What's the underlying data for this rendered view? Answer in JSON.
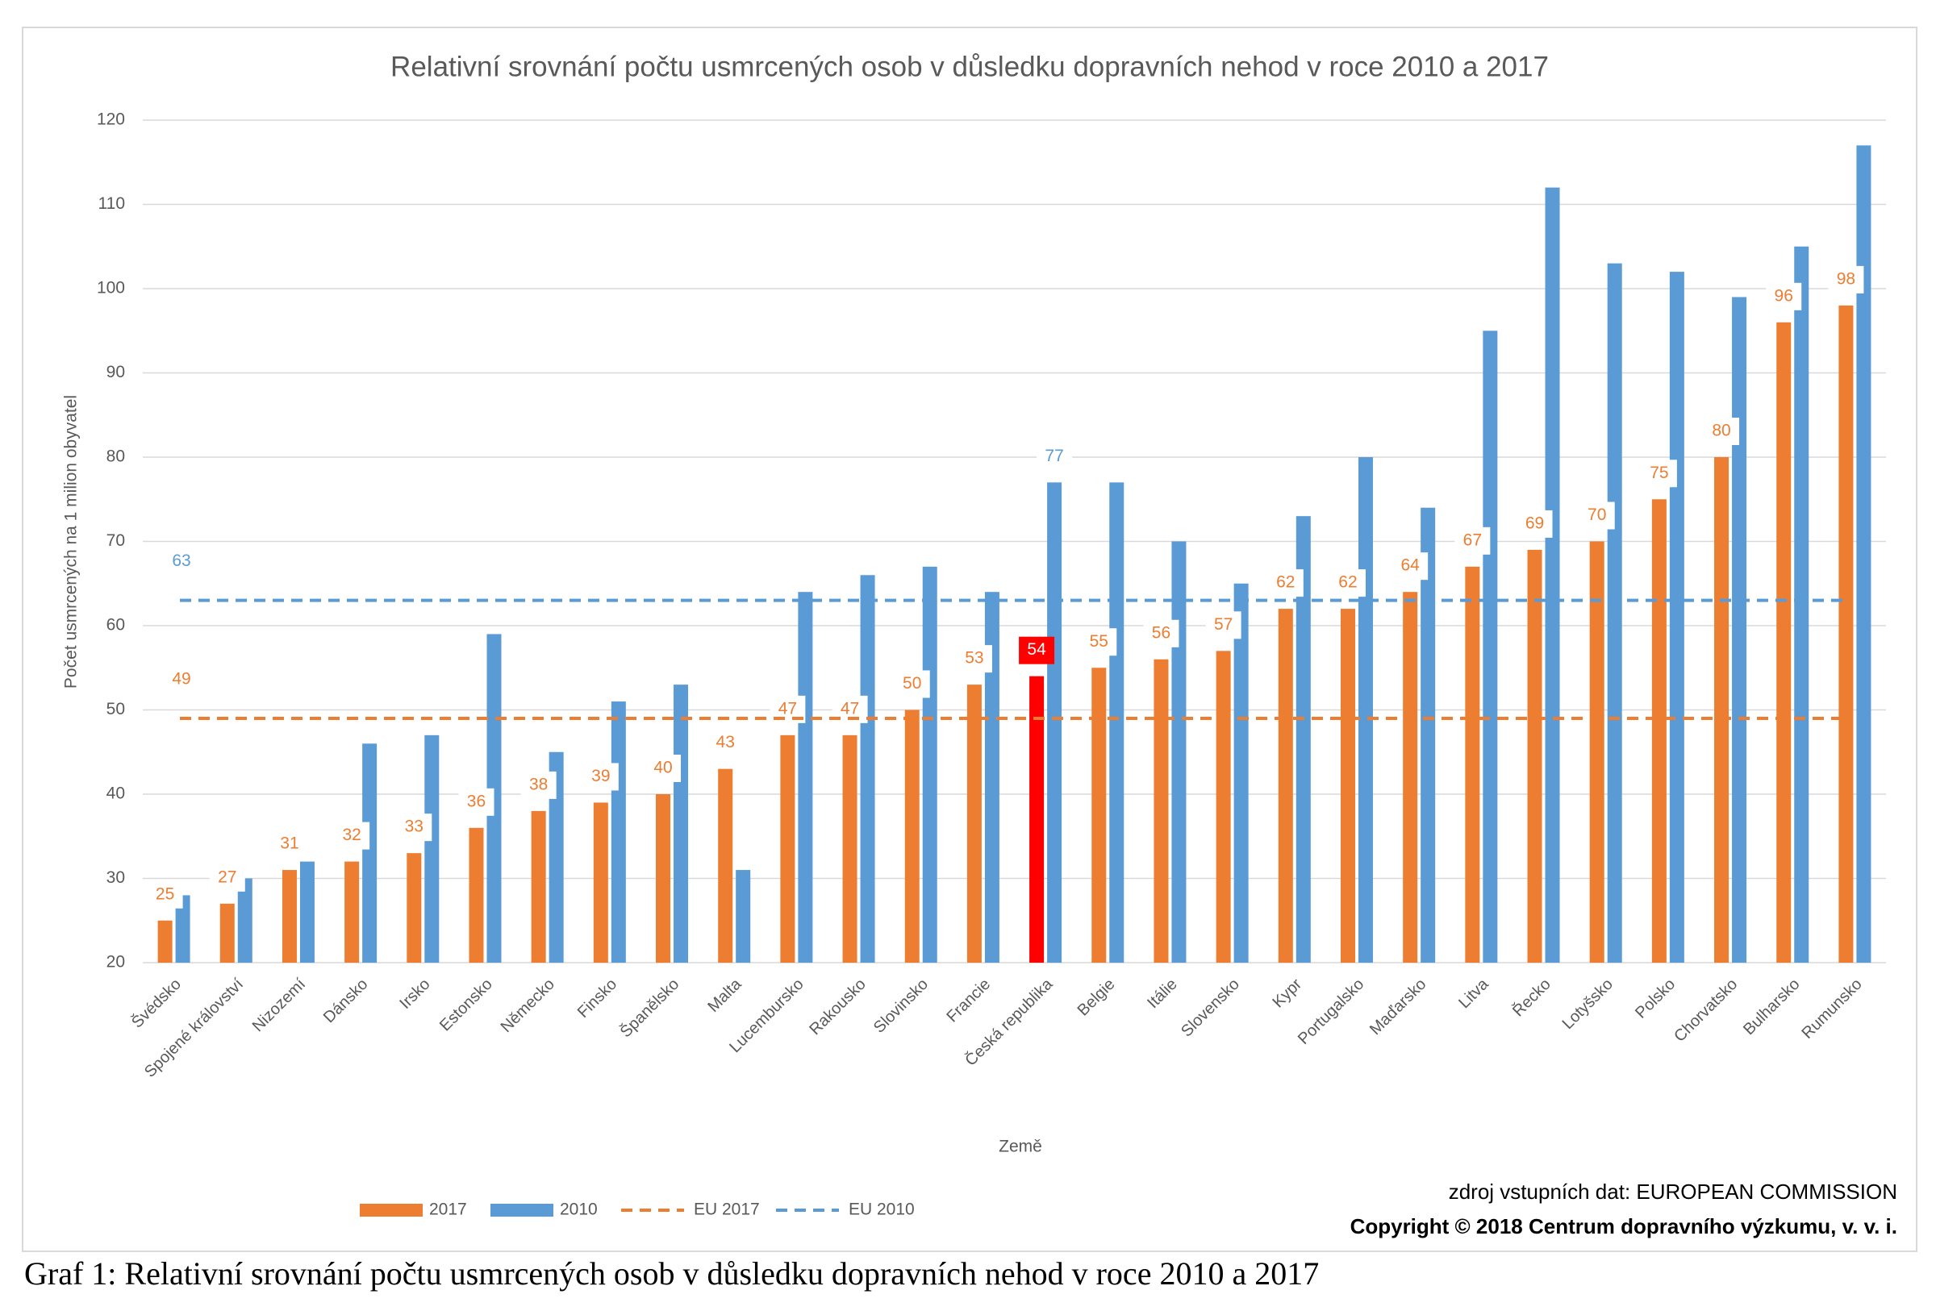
{
  "chart_data": {
    "type": "bar",
    "title": "Relativní srovnání počtu usmrcených osob v důsledku dopravních nehod v roce 2010 a 2017",
    "x_label": "Země",
    "y_label": "Počet usmrcených na 1 milion obyvatel",
    "categories": [
      "Švédsko",
      "Spojené království",
      "Nizozemí",
      "Dánsko",
      "Irsko",
      "Estonsko",
      "Německo",
      "Finsko",
      "Španělsko",
      "Malta",
      "Lucembursko",
      "Rakousko",
      "Slovinsko",
      "Francie",
      "Česká republika",
      "Belgie",
      "Itálie",
      "Slovensko",
      "Kypr",
      "Portugalsko",
      "Maďarsko",
      "Litva",
      "Řecko",
      "Lotyšsko",
      "Polsko",
      "Chorvatsko",
      "Bulharsko",
      "Rumunsko"
    ],
    "series": [
      {
        "name": "2017",
        "color": "#ed7d31",
        "highlight_index": 14,
        "highlight_color": "#ff0000",
        "values": [
          25,
          27,
          31,
          32,
          33,
          36,
          38,
          39,
          40,
          43,
          47,
          47,
          50,
          53,
          54,
          55,
          56,
          57,
          62,
          62,
          64,
          67,
          69,
          70,
          75,
          80,
          96,
          98
        ]
      },
      {
        "name": "2010",
        "color": "#5b9bd5",
        "label_index": 14,
        "values": [
          28,
          30,
          32,
          46,
          47,
          59,
          45,
          51,
          53,
          31,
          64,
          66,
          67,
          64,
          77,
          77,
          70,
          65,
          73,
          80,
          74,
          95,
          112,
          103,
          102,
          99,
          105,
          117
        ]
      }
    ],
    "reference_lines": [
      {
        "name": "EU 2017",
        "value": 49,
        "color": "#ed7d31"
      },
      {
        "name": "EU 2010",
        "value": 63,
        "color": "#5b9bd5"
      }
    ],
    "ylim": [
      20,
      120
    ],
    "yticks": [
      20,
      30,
      40,
      50,
      60,
      70,
      80,
      90,
      100,
      110,
      120
    ],
    "grid": true,
    "source": "zdroj vstupních dat: EUROPEAN COMMISSION",
    "copyright": "Copyright © 2018 Centrum dopravního výzkumu, v. v. i."
  },
  "caption": "Graf 1: Relativní srovnání počtu usmrcených osob v důsledku dopravních nehod v roce 2010 a 2017"
}
